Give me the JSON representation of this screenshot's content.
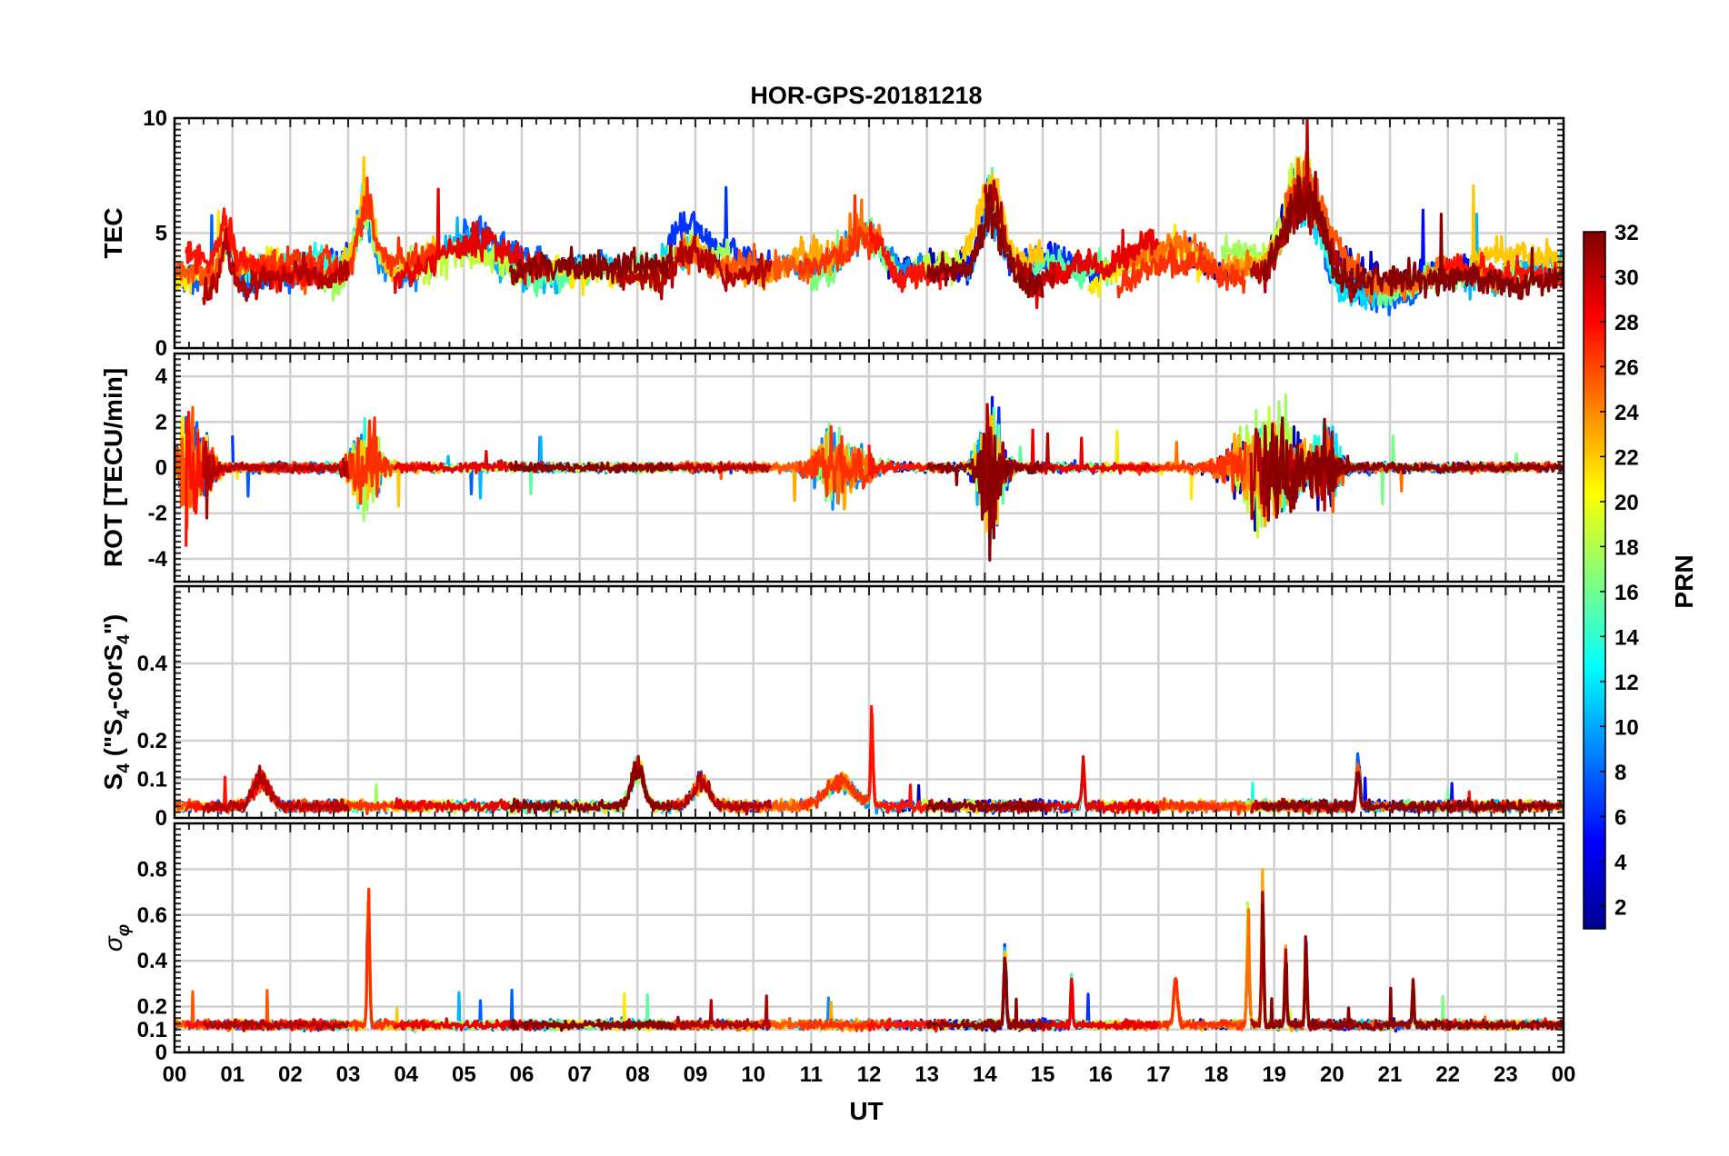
{
  "chart_data": {
    "type": "line",
    "title": "HOR-GPS-20181218",
    "xlabel": "UT",
    "x_ticks": [
      "00",
      "01",
      "02",
      "03",
      "04",
      "05",
      "06",
      "07",
      "08",
      "09",
      "10",
      "11",
      "12",
      "13",
      "14",
      "15",
      "16",
      "17",
      "18",
      "19",
      "20",
      "21",
      "22",
      "23",
      "00"
    ],
    "x_range_hours": [
      0,
      24
    ],
    "grid": true,
    "panels": [
      {
        "id": "tec",
        "ylabel": "TEC",
        "ylim": [
          0,
          10
        ],
        "ytick_values": [
          0,
          5,
          10
        ],
        "ytick_labels": [
          "0",
          "5",
          "10"
        ],
        "baseline": 3.4,
        "noise": 0.55,
        "spike_prob": 0.004,
        "spike_scale": 3.2,
        "walk": true,
        "events": [
          {
            "t": 0.9,
            "amp": 2.2,
            "width": 0.15
          },
          {
            "t": 3.3,
            "amp": 3.8,
            "width": 0.2
          },
          {
            "t": 5.1,
            "amp": 1.8,
            "width": 0.7
          },
          {
            "t": 8.9,
            "amp": 1.6,
            "width": 0.4
          },
          {
            "t": 11.9,
            "amp": 1.8,
            "width": 0.35
          },
          {
            "t": 14.1,
            "amp": 3.8,
            "width": 0.25
          },
          {
            "t": 17.2,
            "amp": 1.6,
            "width": 0.6
          },
          {
            "t": 19.5,
            "amp": 4.5,
            "width": 0.45
          },
          {
            "t": 20.8,
            "amp": -1.2,
            "width": 0.8
          }
        ]
      },
      {
        "id": "rot",
        "ylabel": "ROT [TECU/min]",
        "ylim": [
          -5,
          5
        ],
        "ytick_values": [
          -4,
          -2,
          0,
          2,
          4
        ],
        "ytick_labels": [
          "-4",
          "-2",
          "0",
          "2",
          "4"
        ],
        "baseline": 0,
        "noise": 0.18,
        "spike_prob": 0.006,
        "spike_scale": 1.6,
        "walk": false,
        "events": [
          {
            "t": 0.3,
            "amp": 2.4,
            "width": 0.35,
            "kind": "osc"
          },
          {
            "t": 3.3,
            "amp": 1.9,
            "width": 0.3,
            "kind": "osc"
          },
          {
            "t": 11.5,
            "amp": 1.4,
            "width": 0.55,
            "kind": "osc"
          },
          {
            "t": 14.1,
            "amp": 2.8,
            "width": 0.25,
            "kind": "osc"
          },
          {
            "t": 18.9,
            "amp": 2.2,
            "width": 0.7,
            "kind": "osc"
          },
          {
            "t": 19.9,
            "amp": 1.9,
            "width": 0.25,
            "kind": "osc"
          }
        ]
      },
      {
        "id": "s4",
        "ylabel": "S4 (\"S4-corS4\")",
        "ylabel_parts": [
          "S",
          "4",
          " (\"S",
          "4",
          "-corS",
          "4",
          "\")"
        ],
        "ylim": [
          0,
          0.6
        ],
        "ytick_values": [
          0,
          0.1,
          0.2,
          0.4
        ],
        "ytick_labels": [
          "0",
          "0.1",
          "0.2",
          "0.4"
        ],
        "baseline": 0.03,
        "noise": 0.013,
        "spike_prob": 0.002,
        "spike_scale": 0.09,
        "walk": false,
        "floor": 0,
        "events": [
          {
            "t": 1.5,
            "amp": 0.09,
            "width": 0.2
          },
          {
            "t": 8.0,
            "amp": 0.13,
            "width": 0.15
          },
          {
            "t": 9.1,
            "amp": 0.08,
            "width": 0.2
          },
          {
            "t": 11.5,
            "amp": 0.08,
            "width": 0.35
          },
          {
            "t": 12.05,
            "amp": 0.27,
            "width": 0.03
          },
          {
            "t": 15.7,
            "amp": 0.14,
            "width": 0.03
          },
          {
            "t": 20.45,
            "amp": 0.14,
            "width": 0.04
          }
        ]
      },
      {
        "id": "sigma",
        "ylabel": "σφ",
        "ylabel_parts": [
          "σ",
          "φ"
        ],
        "ylim": [
          0,
          1
        ],
        "ytick_values": [
          0,
          0.1,
          0.2,
          0.4,
          0.6,
          0.8
        ],
        "ytick_labels": [
          "0",
          "0.1",
          "0.2",
          "0.4",
          "0.6",
          "0.8"
        ],
        "baseline": 0.12,
        "noise": 0.018,
        "spike_prob": 0.0025,
        "spike_scale": 0.16,
        "walk": false,
        "floor": 0.05,
        "events": [
          {
            "t": 3.35,
            "amp": 0.68,
            "width": 0.03
          },
          {
            "t": 14.35,
            "amp": 0.38,
            "width": 0.03
          },
          {
            "t": 17.3,
            "amp": 0.24,
            "width": 0.05
          },
          {
            "t": 18.55,
            "amp": 0.55,
            "width": 0.03
          },
          {
            "t": 18.8,
            "amp": 0.72,
            "width": 0.025
          },
          {
            "t": 19.2,
            "amp": 0.36,
            "width": 0.025
          },
          {
            "t": 19.55,
            "amp": 0.44,
            "width": 0.025
          },
          {
            "t": 15.5,
            "amp": 0.25,
            "width": 0.02
          },
          {
            "t": 21.4,
            "amp": 0.24,
            "width": 0.02
          }
        ]
      }
    ],
    "colorbar": {
      "label": "PRN",
      "range": [
        1,
        32
      ],
      "tick_values": [
        2,
        4,
        6,
        8,
        10,
        12,
        14,
        16,
        18,
        20,
        22,
        24,
        26,
        28,
        30,
        32
      ],
      "tick_labels": [
        "2",
        "4",
        "6",
        "8",
        "10",
        "12",
        "14",
        "16",
        "18",
        "20",
        "22",
        "24",
        "26",
        "28",
        "30",
        "32"
      ],
      "colormap": "jet"
    },
    "series": [
      {
        "prn": 2,
        "color": "#0000b4",
        "passes": [
          [
            12.3,
            14.2
          ],
          [
            17.5,
            20.8
          ]
        ]
      },
      {
        "prn": 4,
        "color": "#0008ff",
        "passes": [
          [
            13.2,
            15.5
          ],
          [
            20.2,
            22.5
          ]
        ]
      },
      {
        "prn": 5,
        "color": "#0033ff",
        "passes": [
          [
            1.0,
            3.0
          ],
          [
            8.5,
            10.3
          ],
          [
            14.2,
            16.0
          ]
        ]
      },
      {
        "prn": 7,
        "color": "#0060ff",
        "passes": [
          [
            0.0,
            2.8
          ],
          [
            5.0,
            7.8
          ],
          [
            19.8,
            22.2
          ]
        ]
      },
      {
        "prn": 9,
        "color": "#008cff",
        "passes": [
          [
            3.0,
            4.2
          ],
          [
            10.5,
            13.0
          ]
        ]
      },
      {
        "prn": 11,
        "color": "#00b4ff",
        "passes": [
          [
            4.4,
            6.8
          ],
          [
            13.7,
            14.4
          ],
          [
            22.3,
            24.0
          ]
        ]
      },
      {
        "prn": 12,
        "color": "#00dcff",
        "passes": [
          [
            7.0,
            9.0
          ],
          [
            19.3,
            21.0
          ]
        ]
      },
      {
        "prn": 14,
        "color": "#1cffe0",
        "passes": [
          [
            1.2,
            3.3
          ],
          [
            18.6,
            20.2
          ]
        ]
      },
      {
        "prn": 16,
        "color": "#5cffa0",
        "passes": [
          [
            6.0,
            8.2
          ],
          [
            14.0,
            16.5
          ]
        ]
      },
      {
        "prn": 17,
        "color": "#7cff80",
        "passes": [
          [
            11.0,
            12.5
          ],
          [
            20.8,
            23.5
          ]
        ]
      },
      {
        "prn": 18,
        "color": "#a0ff5c",
        "passes": [
          [
            2.5,
            4.2
          ],
          [
            8.0,
            9.6
          ],
          [
            18.1,
            19.3
          ]
        ]
      },
      {
        "prn": 19,
        "color": "#c0ff3c",
        "passes": [
          [
            4.3,
            6.0
          ],
          [
            12.8,
            13.9
          ],
          [
            18.3,
            19.7
          ]
        ]
      },
      {
        "prn": 21,
        "color": "#ffe800",
        "passes": [
          [
            0.0,
            1.8
          ],
          [
            6.5,
            8.5
          ],
          [
            15.8,
            17.8
          ]
        ]
      },
      {
        "prn": 22,
        "color": "#ffc800",
        "passes": [
          [
            2.8,
            4.6
          ],
          [
            13.6,
            15.0
          ],
          [
            22.4,
            24.0
          ]
        ]
      },
      {
        "prn": 23,
        "color": "#ffaa00",
        "passes": [
          [
            8.8,
            11.8
          ],
          [
            18.2,
            19.8
          ]
        ]
      },
      {
        "prn": 25,
        "color": "#ff7000",
        "passes": [
          [
            11.4,
            12.2
          ],
          [
            16.5,
            18.6
          ],
          [
            20.6,
            23.0
          ]
        ]
      },
      {
        "prn": 26,
        "color": "#ff5500",
        "passes": [
          [
            0.0,
            2.5
          ],
          [
            8.6,
            11.0
          ],
          [
            19.2,
            20.6
          ]
        ]
      },
      {
        "prn": 27,
        "color": "#ff3000",
        "passes": [
          [
            1.5,
            4.5
          ],
          [
            10.8,
            12.1
          ],
          [
            16.3,
            18.5
          ]
        ]
      },
      {
        "prn": 28,
        "color": "#ff1000",
        "passes": [
          [
            0.2,
            2.9
          ],
          [
            12.0,
            13.4
          ],
          [
            21.9,
            24.0
          ]
        ]
      },
      {
        "prn": 29,
        "color": "#e80000",
        "passes": [
          [
            3.8,
            6.5
          ],
          [
            14.8,
            17.0
          ]
        ]
      },
      {
        "prn": 31,
        "color": "#b40000",
        "passes": [
          [
            0.5,
            3.0
          ],
          [
            7.6,
            10.3
          ],
          [
            14.0,
            15.2
          ],
          [
            18.6,
            20.4
          ]
        ]
      },
      {
        "prn": 32,
        "color": "#8a0000",
        "passes": [
          [
            5.8,
            8.6
          ],
          [
            13.0,
            15.0
          ],
          [
            18.8,
            24.0
          ]
        ]
      }
    ]
  }
}
